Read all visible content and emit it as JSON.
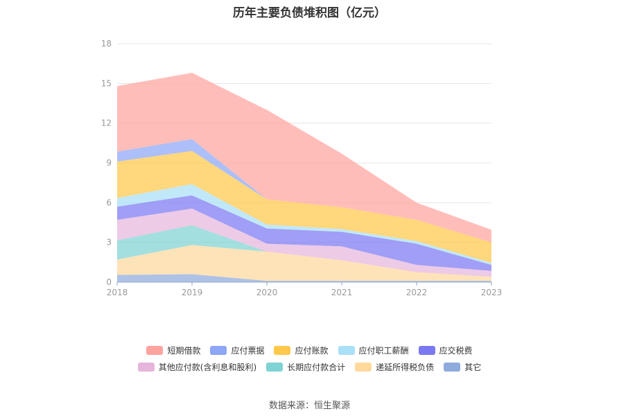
{
  "chart_data": {
    "type": "area",
    "stacked": true,
    "title": "历年主要负债堆积图（亿元）",
    "x": [
      "2018",
      "2019",
      "2020",
      "2021",
      "2022",
      "2023"
    ],
    "ylim": [
      0,
      18
    ],
    "yticks": [
      "0",
      "3",
      "6",
      "9",
      "12",
      "15",
      "18"
    ],
    "grid": true,
    "legend_position": "bottom",
    "series": [
      {
        "name": "其它",
        "color": "#8FAADC",
        "values": [
          0.55,
          0.6,
          0.1,
          0.1,
          0.1,
          0.1
        ]
      },
      {
        "name": "递延所得税负债",
        "color": "#FFD89C",
        "values": [
          1.15,
          2.2,
          2.2,
          1.55,
          0.65,
          0.3
        ]
      },
      {
        "name": "长期应付款合计",
        "color": "#7FD3D3",
        "values": [
          1.45,
          1.5,
          0.0,
          0.0,
          0.0,
          0.0
        ]
      },
      {
        "name": "其他应付款(含利息和股利)",
        "color": "#E6B5DC",
        "values": [
          1.55,
          1.25,
          0.6,
          1.05,
          0.55,
          0.45
        ]
      },
      {
        "name": "应交税费",
        "color": "#7B79F2",
        "values": [
          1.0,
          1.0,
          1.15,
          1.1,
          1.6,
          0.45
        ]
      },
      {
        "name": "应付职工薪酬",
        "color": "#A9DFF7",
        "values": [
          0.65,
          0.85,
          0.3,
          0.2,
          0.2,
          0.15
        ]
      },
      {
        "name": "应付账款",
        "color": "#FFC84A",
        "values": [
          2.75,
          2.5,
          1.9,
          1.65,
          1.6,
          1.55
        ]
      },
      {
        "name": "应付票据",
        "color": "#8DA6F5",
        "values": [
          0.75,
          0.9,
          0.0,
          0.0,
          0.0,
          0.0
        ]
      },
      {
        "name": "短期借款",
        "color": "#FFA3A0",
        "values": [
          4.95,
          5.0,
          6.75,
          4.05,
          1.3,
          0.95
        ]
      }
    ],
    "legend_rows": [
      [
        "短期借款",
        "应付票据",
        "应付账款",
        "应付职工薪酬",
        "应交税费"
      ],
      [
        "其他应付款(含利息和股利)",
        "长期应付款合计",
        "递延所得税负债",
        "其它"
      ]
    ]
  },
  "source_label": "数据来源：恒生聚源"
}
